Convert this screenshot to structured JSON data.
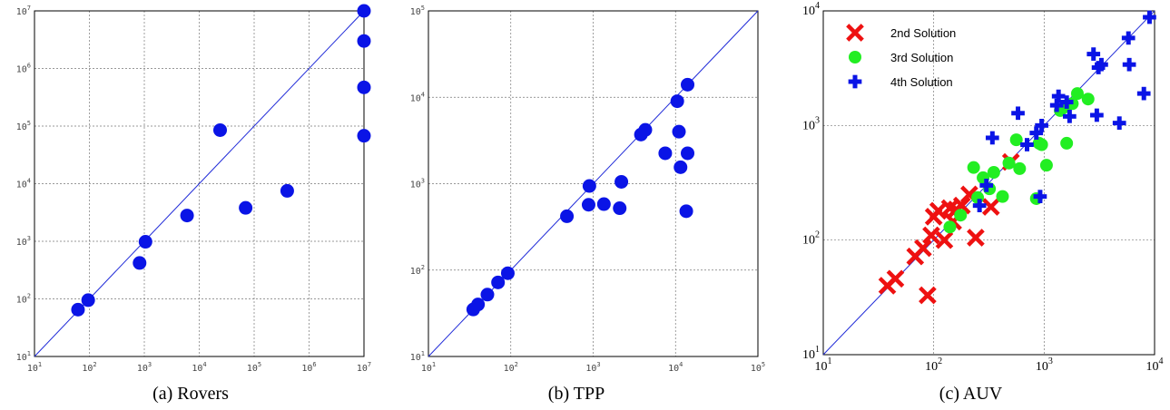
{
  "figure": {
    "captions": [
      "(a) Rovers",
      "(b) TPP",
      "(c) AUV"
    ]
  },
  "chart_data": [
    {
      "type": "scatter",
      "xscale": "log",
      "yscale": "log",
      "xlim": [
        10,
        10000000
      ],
      "ylim": [
        10,
        10000000
      ],
      "grid": true,
      "diagonal": true,
      "x_tick_labels": [
        "10^1",
        "10^2",
        "10^3",
        "10^4",
        "10^5",
        "10^6",
        "10^7"
      ],
      "y_tick_labels": [
        "10^1",
        "10^2",
        "10^3",
        "10^4",
        "10^5",
        "10^6",
        "10^7"
      ],
      "series": [
        {
          "color": "#0a14e6",
          "marker": "circle",
          "points": [
            [
              62,
              65
            ],
            [
              95,
              95
            ],
            [
              820,
              420
            ],
            [
              1050,
              980
            ],
            [
              6000,
              2800
            ],
            [
              24000,
              85000
            ],
            [
              70000,
              3800
            ],
            [
              400000,
              7500
            ],
            [
              10000000,
              10000000
            ],
            [
              10000000,
              3000000
            ],
            [
              10000000,
              470000
            ],
            [
              10000000,
              68000
            ]
          ]
        }
      ]
    },
    {
      "type": "scatter",
      "xscale": "log",
      "yscale": "log",
      "xlim": [
        10,
        100000
      ],
      "ylim": [
        10,
        100000
      ],
      "grid": true,
      "diagonal": true,
      "x_tick_labels": [
        "10^1",
        "10^2",
        "10^3",
        "10^4",
        "10^5"
      ],
      "y_tick_labels": [
        "10^1",
        "10^2",
        "10^3",
        "10^4",
        "10^5"
      ],
      "series": [
        {
          "color": "#0a14e6",
          "marker": "circle",
          "points": [
            [
              35,
              35
            ],
            [
              40,
              40
            ],
            [
              52,
              52
            ],
            [
              70,
              72
            ],
            [
              92,
              92
            ],
            [
              480,
              420
            ],
            [
              900,
              940
            ],
            [
              880,
              570
            ],
            [
              1350,
              580
            ],
            [
              2100,
              520
            ],
            [
              2200,
              1050
            ],
            [
              3800,
              3700
            ],
            [
              4300,
              4200
            ],
            [
              7500,
              2250
            ],
            [
              10500,
              9000
            ],
            [
              11000,
              4000
            ],
            [
              11500,
              1550
            ],
            [
              14000,
              14000
            ],
            [
              14000,
              2250
            ],
            [
              13500,
              480
            ]
          ]
        }
      ]
    },
    {
      "type": "scatter",
      "xscale": "log",
      "yscale": "log",
      "xlim": [
        10,
        10000
      ],
      "ylim": [
        10,
        10000
      ],
      "grid": true,
      "diagonal": true,
      "legend_position": "top-left",
      "x_tick_labels": [
        "10^1",
        "10^2",
        "10^3",
        "10^4"
      ],
      "y_tick_labels": [
        "10^1",
        "10^2",
        "10^3",
        "10^4"
      ],
      "series": [
        {
          "name": "2nd Solution",
          "color": "#ee1111",
          "marker": "x",
          "points": [
            [
              38,
              40
            ],
            [
              45,
              46
            ],
            [
              68,
              72
            ],
            [
              80,
              85
            ],
            [
              88,
              33
            ],
            [
              95,
              110
            ],
            [
              100,
              160
            ],
            [
              110,
              180
            ],
            [
              125,
              100
            ],
            [
              140,
              190
            ],
            [
              150,
              145
            ],
            [
              160,
              185
            ],
            [
              180,
              200
            ],
            [
              210,
              250
            ],
            [
              240,
              105
            ],
            [
              330,
              195
            ],
            [
              500,
              480
            ]
          ]
        },
        {
          "name": "3rd Solution",
          "color": "#22ee22",
          "marker": "circle",
          "points": [
            [
              140,
              130
            ],
            [
              175,
              165
            ],
            [
              230,
              430
            ],
            [
              250,
              235
            ],
            [
              280,
              350
            ],
            [
              320,
              280
            ],
            [
              350,
              390
            ],
            [
              420,
              240
            ],
            [
              480,
              470
            ],
            [
              560,
              750
            ],
            [
              600,
              420
            ],
            [
              850,
              230
            ],
            [
              900,
              700
            ],
            [
              950,
              680
            ],
            [
              1050,
              450
            ],
            [
              1400,
              1350
            ],
            [
              1550,
              1450
            ],
            [
              1800,
              1550
            ],
            [
              2000,
              1900
            ],
            [
              2500,
              1700
            ],
            [
              1600,
              700
            ]
          ]
        },
        {
          "name": "4th Solution",
          "color": "#0a14e6",
          "marker": "plus",
          "points": [
            [
              260,
              200
            ],
            [
              300,
              300
            ],
            [
              340,
              780
            ],
            [
              580,
              1280
            ],
            [
              700,
              680
            ],
            [
              850,
              860
            ],
            [
              920,
              240
            ],
            [
              950,
              1000
            ],
            [
              1350,
              1800
            ],
            [
              1600,
              1600
            ],
            [
              1700,
              1200
            ],
            [
              2800,
              4200
            ],
            [
              3100,
              3200
            ],
            [
              3300,
              3400
            ],
            [
              3000,
              1230
            ],
            [
              4800,
              1050
            ],
            [
              5800,
              5800
            ],
            [
              5900,
              3400
            ],
            [
              8000,
              1900
            ],
            [
              9000,
              8800
            ],
            [
              1300,
              1500
            ]
          ]
        }
      ]
    }
  ]
}
